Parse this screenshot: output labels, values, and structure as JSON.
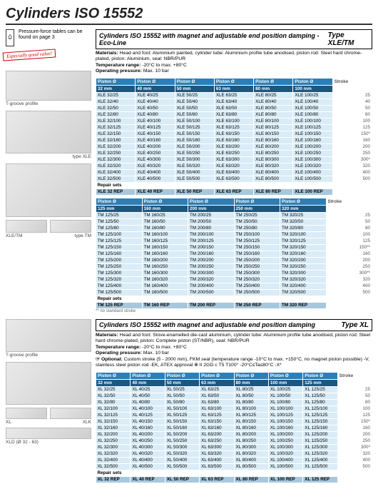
{
  "pageTitle": "Cylinders ISO 15552",
  "pressureNote": "Pressure-force tables can be found on page 3",
  "badge": "Especially good value!",
  "captions": {
    "tgroove": "T-groove profile",
    "typeXLE": "type XLE",
    "xleTM": "XLE/TM",
    "typeTM": "type TM",
    "xl": "XL",
    "xlk": "XLK",
    "xld": "XLD (Ø 32 - 63)"
  },
  "sectionA": {
    "title": "Cylinders ISO 15552 with magnet and adjustable end position damping - Eco-Line",
    "typeLabel": "Type XLE/TM",
    "meta": {
      "materials": "Head and foot: Aluminium painted, cylinder tube: Aluminium profile tube anodised, piston rod: Steel hard chrome-plated, piston: Aluminium, seal: NBR/PUR",
      "tempLabel": "Temperature range:",
      "temp": "-20°C to max. +80°C",
      "pressLabel": "Operating pressure:",
      "press": "Max. 10 bar"
    },
    "pistonLabel": "Piston Ø",
    "strokeLabel": "Stroke",
    "xleCols": [
      "32 mm",
      "40 mm",
      "50 mm",
      "63 mm",
      "80 mm",
      "100 mm"
    ],
    "xleRows": [
      [
        "XLE 32/25",
        "XLE 40/25",
        "XLE 50/25",
        "XLE 63/25",
        "XLE 80/25",
        "XLE 100/25",
        "25"
      ],
      [
        "XLE 32/40",
        "XLE 40/40",
        "XLE 50/40",
        "XLE 63/40",
        "XLE 80/40",
        "XLE 100/40",
        "40"
      ],
      [
        "XLE 32/50",
        "XLE 40/50",
        "XLE 50/50",
        "XLE 63/50",
        "XLE 80/50",
        "XLE 100/50",
        "50"
      ],
      [
        "XLE 32/80",
        "XLE 40/80",
        "XLE 50/80",
        "XLE 63/80",
        "XLE 80/80",
        "XLE 100/80",
        "80"
      ],
      [
        "XLE 32/100",
        "XLE 40/100",
        "XLE 50/100",
        "XLE 63/100",
        "XLE 80/100",
        "XLE 100/100",
        "100"
      ],
      [
        "XLE 32/125",
        "XLE 40/125",
        "XLE 50/125",
        "XLE 63/125",
        "XLE 80/125",
        "XLE 100/125",
        "125"
      ],
      [
        "XLE 32/150",
        "XLE 40/150",
        "XLE 50/150",
        "XLE 63/150",
        "XLE 80/150",
        "XLE 100/150",
        "150*"
      ],
      [
        "XLE 32/160",
        "XLE 40/160",
        "XLE 50/160",
        "XLE 63/160",
        "XLE 80/160",
        "XLE 100/160",
        "160"
      ],
      [
        "XLE 32/200",
        "XLE 40/200",
        "XLE 50/200",
        "XLE 63/200",
        "XLE 80/200",
        "XLE 100/200",
        "200"
      ],
      [
        "XLE 32/250",
        "XLE 40/250",
        "XLE 50/250",
        "XLE 63/250",
        "XLE 80/250",
        "XLE 100/250",
        "250"
      ],
      [
        "XLE 32/300",
        "XLE 40/300",
        "XLE 50/300",
        "XLE 63/300",
        "XLE 80/300",
        "XLE 100/300",
        "300*"
      ],
      [
        "XLE 32/320",
        "XLE 40/320",
        "XLE 50/320",
        "XLE 63/320",
        "XLE 80/320",
        "XLE 100/320",
        "320"
      ],
      [
        "XLE 32/400",
        "XLE 40/400",
        "XLE 50/400",
        "XLE 63/400",
        "XLE 80/400",
        "XLE 100/400",
        "400"
      ],
      [
        "XLE 32/500",
        "XLE 40/500",
        "XLE 50/500",
        "XLE 63/500",
        "XLE 80/500",
        "XLE 100/500",
        "500"
      ]
    ],
    "repairLabel": "Repair sets",
    "xleRepair": [
      "XLE 32 REP",
      "XLE 40 REP",
      "XLE 50 REP",
      "XLE 63 REP",
      "XLE 80 REP",
      "XLE 100 REP"
    ],
    "tmCols": [
      "125 mm",
      "160 mm",
      "200 mm",
      "250 mm",
      "320 mm"
    ],
    "tmRows": [
      [
        "TM 125/25",
        "TM 160/25",
        "TM 200/25",
        "TM 250/25",
        "TM 320/25",
        "25"
      ],
      [
        "TM 125/50",
        "TM 160/50",
        "TM 200/50",
        "TM 250/50",
        "TM 320/50",
        "50"
      ],
      [
        "TM 125/80",
        "TM 160/80",
        "TM 200/80",
        "TM 250/80",
        "TM 320/80",
        "80"
      ],
      [
        "TM 125/100",
        "TM 160/100",
        "TM 200/100",
        "TM 250/100",
        "TM 320/100",
        "100"
      ],
      [
        "TM 125/125",
        "TM 160/125",
        "TM 200/125",
        "TM 250/125",
        "TM 320/125",
        "125"
      ],
      [
        "TM 125/150",
        "TM 160/150",
        "TM 200/150",
        "TM 250/150",
        "TM 320/150",
        "150**"
      ],
      [
        "TM 125/160",
        "TM 160/160",
        "TM 200/160",
        "TM 250/160",
        "TM 320/160",
        "160"
      ],
      [
        "TM 125/200",
        "TM 160/200",
        "TM 200/200",
        "TM 250/200",
        "TM 320/200",
        "200"
      ],
      [
        "TM 125/250",
        "TM 160/250",
        "TM 200/250",
        "TM 250/250",
        "TM 320/250",
        "250"
      ],
      [
        "TM 125/300",
        "TM 160/300",
        "TM 200/300",
        "TM 250/300",
        "TM 320/300",
        "300**"
      ],
      [
        "TM 125/320",
        "TM 160/320",
        "TM 200/320",
        "TM 250/320",
        "TM 320/320",
        "320"
      ],
      [
        "TM 125/400",
        "TM 160/400",
        "TM 200/400",
        "TM 250/400",
        "TM 320/400",
        "400"
      ],
      [
        "TM 125/500",
        "TM 160/500",
        "TM 200/500",
        "TM 250/500",
        "TM 320/500",
        "500"
      ]
    ],
    "tmRepair": [
      "TM 125 REP",
      "TM 160 REP",
      "TM 200 REP",
      "TM 250 REP",
      "TM 320 REP"
    ],
    "footnote": "** no standard stroke"
  },
  "sectionB": {
    "title": "Cylinders ISO 15552 with magnet and adjustable end position damping",
    "typeLabel": "Type XL",
    "meta": {
      "materials": "Head and foot: Stove-enamelled die-cast aluminium, cylinder tube: Aluminium profile tube anodised, piston rod: Steel hard chrome-plated, piston: Complete piston (ST/NBR), seal: NBR/PUR",
      "tempLabel": "Temperature range:",
      "temp": "-20°C to max. +80°C",
      "pressLabel": "Operating pressure:",
      "press": "Max. 10 bar",
      "optionLabel": "☞ Optional:",
      "option": "Custom stroke (5 - 2000 mm), FKM seal (temperature range -10°C to max. +150°C, no magnet piston possible) -V, stainless steel piston rod -EK, ATEX approval ⊗ II 2GD c T5 T100° -20°C≤Ta≤80°C -X*"
    },
    "cols": [
      "32 mm",
      "40 mm",
      "50 mm",
      "63 mm",
      "80 mm",
      "100 mm",
      "125 mm"
    ],
    "rows": [
      [
        "XL 32/25",
        "XL 40/25",
        "XL 50/25",
        "XL 63/25",
        "XL 80/25",
        "XL 100/25",
        "XL 125/25",
        "25"
      ],
      [
        "XL 32/50",
        "XL 40/50",
        "XL 50/50",
        "XL 63/50",
        "XL 80/50",
        "XL 100/50",
        "XL 125/50",
        "50"
      ],
      [
        "XL 32/80",
        "XL 40/80",
        "XL 50/80",
        "XL 63/80",
        "XL 80/80",
        "XL 100/80",
        "XL 125/80",
        "80"
      ],
      [
        "XL 32/100",
        "XL 40/100",
        "XL 50/100",
        "XL 63/100",
        "XL 80/100",
        "XL 100/100",
        "XL 125/100",
        "100"
      ],
      [
        "XL 32/125",
        "XL 40/125",
        "XL 50/125",
        "XL 63/125",
        "XL 80/125",
        "XL 100/125",
        "XL 125/125",
        "125"
      ],
      [
        "XL 32/150",
        "XL 40/150",
        "XL 50/150",
        "XL 63/150",
        "XL 80/150",
        "XL 100/150",
        "XL 125/150",
        "150*"
      ],
      [
        "XL 32/160",
        "XL 40/160",
        "XL 50/160",
        "XL 63/160",
        "XL 80/160",
        "XL 100/160",
        "XL 125/160",
        "160"
      ],
      [
        "XL 32/200",
        "XL 40/200",
        "XL 50/200",
        "XL 63/200",
        "XL 80/200",
        "XL 100/200",
        "XL 125/200",
        "200"
      ],
      [
        "XL 32/250",
        "XL 40/250",
        "XL 50/250",
        "XL 63/250",
        "XL 80/250",
        "XL 100/250",
        "XL 125/250",
        "250"
      ],
      [
        "XL 32/300",
        "XL 40/300",
        "XL 50/300",
        "XL 63/300",
        "XL 80/300",
        "XL 100/300",
        "XL 125/300",
        "300*"
      ],
      [
        "XL 32/320",
        "XL 40/320",
        "XL 50/320",
        "XL 63/320",
        "XL 80/320",
        "XL 100/320",
        "XL 125/320",
        "320"
      ],
      [
        "XL 32/400",
        "XL 40/400",
        "XL 50/400",
        "XL 63/400",
        "XL 80/400",
        "XL 100/400",
        "XL 125/400",
        "400"
      ],
      [
        "XL 32/500",
        "XL 40/500",
        "XL 50/500",
        "XL 63/500",
        "XL 80/500",
        "XL 100/500",
        "XL 125/500",
        "500"
      ]
    ],
    "repair": [
      "XL 32 REP",
      "XL 40 REP",
      "XL 50 REP",
      "XL 63 REP",
      "XL 80 REP",
      "XL 100 REP",
      "XL 125 REP"
    ]
  },
  "colors": {
    "headerBlue": "#2b7fb8",
    "cellBlue": "#d9ecf7",
    "repairBlue": "#a6c8de"
  }
}
